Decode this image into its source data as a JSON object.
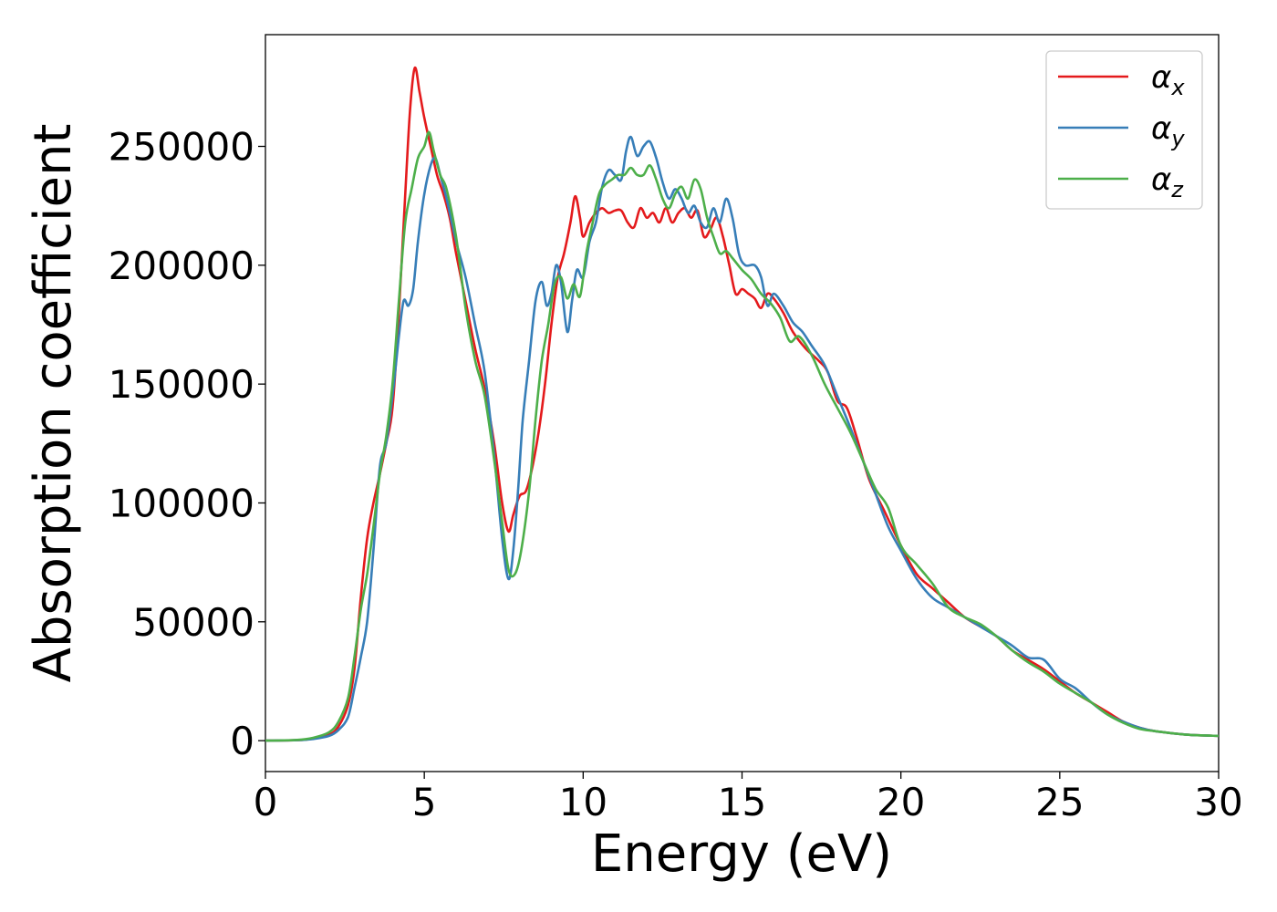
{
  "chart_data": {
    "type": "line",
    "xlabel": "Energy (eV)",
    "ylabel": "Absorption coefficient",
    "xlim": [
      0,
      30
    ],
    "ylim": [
      -13000,
      297000
    ],
    "xticks": [
      0,
      5,
      10,
      15,
      20,
      25,
      30
    ],
    "yticks": [
      0,
      50000,
      100000,
      150000,
      200000,
      250000
    ],
    "grid": false,
    "legend_position": "top-right",
    "series": [
      {
        "name": "α",
        "subscript": "x",
        "color": "#e41a1c",
        "points": [
          [
            0,
            0
          ],
          [
            1,
            200
          ],
          [
            1.5,
            800
          ],
          [
            2,
            2500
          ],
          [
            2.3,
            6000
          ],
          [
            2.6,
            15000
          ],
          [
            2.8,
            30000
          ],
          [
            3.0,
            60000
          ],
          [
            3.2,
            85000
          ],
          [
            3.4,
            100000
          ],
          [
            3.6,
            112000
          ],
          [
            3.8,
            125000
          ],
          [
            4.0,
            140000
          ],
          [
            4.2,
            180000
          ],
          [
            4.4,
            230000
          ],
          [
            4.55,
            265000
          ],
          [
            4.7,
            283000
          ],
          [
            4.85,
            273000
          ],
          [
            5.0,
            262000
          ],
          [
            5.2,
            250000
          ],
          [
            5.4,
            238000
          ],
          [
            5.6,
            230000
          ],
          [
            5.8,
            220000
          ],
          [
            6.0,
            205000
          ],
          [
            6.3,
            185000
          ],
          [
            6.6,
            165000
          ],
          [
            6.9,
            148000
          ],
          [
            7.2,
            125000
          ],
          [
            7.45,
            100000
          ],
          [
            7.65,
            88000
          ],
          [
            7.8,
            95000
          ],
          [
            8.0,
            103000
          ],
          [
            8.2,
            105000
          ],
          [
            8.4,
            115000
          ],
          [
            8.6,
            130000
          ],
          [
            8.8,
            150000
          ],
          [
            9.0,
            175000
          ],
          [
            9.2,
            195000
          ],
          [
            9.4,
            205000
          ],
          [
            9.6,
            218000
          ],
          [
            9.75,
            229000
          ],
          [
            9.9,
            220000
          ],
          [
            10.0,
            212000
          ],
          [
            10.2,
            218000
          ],
          [
            10.4,
            222000
          ],
          [
            10.6,
            224000
          ],
          [
            10.8,
            222000
          ],
          [
            11.0,
            223000
          ],
          [
            11.2,
            223000
          ],
          [
            11.4,
            218000
          ],
          [
            11.6,
            216000
          ],
          [
            11.8,
            224000
          ],
          [
            12.0,
            220000
          ],
          [
            12.2,
            222000
          ],
          [
            12.4,
            218000
          ],
          [
            12.6,
            224000
          ],
          [
            12.8,
            218000
          ],
          [
            13.0,
            222000
          ],
          [
            13.2,
            224000
          ],
          [
            13.4,
            220000
          ],
          [
            13.6,
            223000
          ],
          [
            13.8,
            212000
          ],
          [
            14.0,
            215000
          ],
          [
            14.2,
            220000
          ],
          [
            14.4,
            212000
          ],
          [
            14.6,
            200000
          ],
          [
            14.8,
            188000
          ],
          [
            15.0,
            190000
          ],
          [
            15.2,
            188000
          ],
          [
            15.4,
            186000
          ],
          [
            15.6,
            182000
          ],
          [
            15.8,
            188000
          ],
          [
            16.0,
            186000
          ],
          [
            16.3,
            180000
          ],
          [
            16.6,
            172000
          ],
          [
            17.0,
            165000
          ],
          [
            17.4,
            160000
          ],
          [
            17.7,
            155000
          ],
          [
            18.0,
            143000
          ],
          [
            18.3,
            140000
          ],
          [
            18.6,
            128000
          ],
          [
            19.0,
            110000
          ],
          [
            19.5,
            96000
          ],
          [
            20.0,
            82000
          ],
          [
            20.5,
            70000
          ],
          [
            21.0,
            64000
          ],
          [
            21.5,
            58000
          ],
          [
            22.0,
            52000
          ],
          [
            22.5,
            48000
          ],
          [
            23.0,
            44000
          ],
          [
            23.5,
            38000
          ],
          [
            24.0,
            34000
          ],
          [
            24.5,
            30000
          ],
          [
            25.0,
            25000
          ],
          [
            25.5,
            20000
          ],
          [
            26.0,
            16000
          ],
          [
            26.5,
            12000
          ],
          [
            27.0,
            8000
          ],
          [
            27.5,
            5500
          ],
          [
            28.0,
            4000
          ],
          [
            29.0,
            2500
          ],
          [
            30.0,
            2000
          ]
        ]
      },
      {
        "name": "α",
        "subscript": "y",
        "color": "#377eb8",
        "points": [
          [
            0,
            0
          ],
          [
            1,
            200
          ],
          [
            1.5,
            700
          ],
          [
            2,
            2000
          ],
          [
            2.3,
            4500
          ],
          [
            2.6,
            10000
          ],
          [
            2.8,
            22000
          ],
          [
            3.0,
            35000
          ],
          [
            3.2,
            50000
          ],
          [
            3.4,
            80000
          ],
          [
            3.6,
            115000
          ],
          [
            3.8,
            125000
          ],
          [
            4.0,
            145000
          ],
          [
            4.2,
            170000
          ],
          [
            4.35,
            185000
          ],
          [
            4.5,
            183000
          ],
          [
            4.65,
            190000
          ],
          [
            4.8,
            210000
          ],
          [
            5.0,
            230000
          ],
          [
            5.2,
            242000
          ],
          [
            5.35,
            245000
          ],
          [
            5.5,
            238000
          ],
          [
            5.7,
            228000
          ],
          [
            6.0,
            210000
          ],
          [
            6.3,
            195000
          ],
          [
            6.6,
            175000
          ],
          [
            6.9,
            155000
          ],
          [
            7.2,
            120000
          ],
          [
            7.45,
            85000
          ],
          [
            7.65,
            68000
          ],
          [
            7.8,
            80000
          ],
          [
            7.95,
            105000
          ],
          [
            8.1,
            135000
          ],
          [
            8.3,
            160000
          ],
          [
            8.5,
            185000
          ],
          [
            8.7,
            193000
          ],
          [
            8.85,
            183000
          ],
          [
            9.0,
            188000
          ],
          [
            9.15,
            200000
          ],
          [
            9.3,
            193000
          ],
          [
            9.5,
            172000
          ],
          [
            9.65,
            185000
          ],
          [
            9.8,
            198000
          ],
          [
            10.0,
            195000
          ],
          [
            10.2,
            210000
          ],
          [
            10.4,
            218000
          ],
          [
            10.6,
            233000
          ],
          [
            10.8,
            240000
          ],
          [
            11.0,
            238000
          ],
          [
            11.2,
            236000
          ],
          [
            11.35,
            248000
          ],
          [
            11.5,
            254000
          ],
          [
            11.7,
            246000
          ],
          [
            11.9,
            250000
          ],
          [
            12.1,
            252000
          ],
          [
            12.3,
            245000
          ],
          [
            12.5,
            235000
          ],
          [
            12.7,
            228000
          ],
          [
            12.9,
            232000
          ],
          [
            13.1,
            228000
          ],
          [
            13.3,
            222000
          ],
          [
            13.5,
            225000
          ],
          [
            13.7,
            218000
          ],
          [
            13.9,
            216000
          ],
          [
            14.1,
            224000
          ],
          [
            14.3,
            218000
          ],
          [
            14.5,
            228000
          ],
          [
            14.7,
            220000
          ],
          [
            14.9,
            205000
          ],
          [
            15.1,
            200000
          ],
          [
            15.4,
            200000
          ],
          [
            15.6,
            195000
          ],
          [
            15.8,
            183000
          ],
          [
            16.0,
            188000
          ],
          [
            16.3,
            183000
          ],
          [
            16.6,
            176000
          ],
          [
            16.9,
            172000
          ],
          [
            17.2,
            166000
          ],
          [
            17.6,
            158000
          ],
          [
            18.0,
            145000
          ],
          [
            18.4,
            132000
          ],
          [
            18.8,
            118000
          ],
          [
            19.2,
            104000
          ],
          [
            19.6,
            90000
          ],
          [
            20.0,
            80000
          ],
          [
            20.5,
            68000
          ],
          [
            21.0,
            60000
          ],
          [
            21.5,
            56000
          ],
          [
            22.0,
            52000
          ],
          [
            22.5,
            48000
          ],
          [
            23.0,
            44000
          ],
          [
            23.5,
            40000
          ],
          [
            24.0,
            35000
          ],
          [
            24.5,
            34000
          ],
          [
            25.0,
            26000
          ],
          [
            25.5,
            22000
          ],
          [
            26.0,
            16000
          ],
          [
            26.5,
            11000
          ],
          [
            27.0,
            8000
          ],
          [
            27.5,
            5500
          ],
          [
            28.0,
            4000
          ],
          [
            29.0,
            2500
          ],
          [
            30.0,
            2000
          ]
        ]
      },
      {
        "name": "α",
        "subscript": "z",
        "color": "#4daf4a",
        "points": [
          [
            0,
            0
          ],
          [
            1,
            300
          ],
          [
            1.5,
            1200
          ],
          [
            2,
            3500
          ],
          [
            2.3,
            8000
          ],
          [
            2.6,
            18000
          ],
          [
            2.8,
            35000
          ],
          [
            3.0,
            55000
          ],
          [
            3.2,
            70000
          ],
          [
            3.4,
            90000
          ],
          [
            3.6,
            112000
          ],
          [
            3.8,
            128000
          ],
          [
            4.0,
            150000
          ],
          [
            4.2,
            185000
          ],
          [
            4.4,
            218000
          ],
          [
            4.6,
            232000
          ],
          [
            4.8,
            245000
          ],
          [
            5.0,
            250000
          ],
          [
            5.15,
            256000
          ],
          [
            5.3,
            248000
          ],
          [
            5.5,
            238000
          ],
          [
            5.7,
            232000
          ],
          [
            6.0,
            212000
          ],
          [
            6.3,
            182000
          ],
          [
            6.6,
            160000
          ],
          [
            6.9,
            145000
          ],
          [
            7.2,
            118000
          ],
          [
            7.45,
            92000
          ],
          [
            7.65,
            72000
          ],
          [
            7.85,
            70000
          ],
          [
            8.05,
            80000
          ],
          [
            8.3,
            105000
          ],
          [
            8.5,
            135000
          ],
          [
            8.7,
            160000
          ],
          [
            8.9,
            175000
          ],
          [
            9.1,
            192000
          ],
          [
            9.3,
            195000
          ],
          [
            9.5,
            186000
          ],
          [
            9.7,
            192000
          ],
          [
            9.9,
            187000
          ],
          [
            10.1,
            205000
          ],
          [
            10.3,
            218000
          ],
          [
            10.5,
            230000
          ],
          [
            10.7,
            234000
          ],
          [
            10.9,
            236000
          ],
          [
            11.1,
            238000
          ],
          [
            11.3,
            238000
          ],
          [
            11.5,
            241000
          ],
          [
            11.7,
            238000
          ],
          [
            11.9,
            238000
          ],
          [
            12.1,
            242000
          ],
          [
            12.3,
            236000
          ],
          [
            12.5,
            228000
          ],
          [
            12.7,
            224000
          ],
          [
            12.9,
            230000
          ],
          [
            13.1,
            233000
          ],
          [
            13.3,
            228000
          ],
          [
            13.5,
            236000
          ],
          [
            13.7,
            232000
          ],
          [
            13.9,
            220000
          ],
          [
            14.1,
            212000
          ],
          [
            14.3,
            205000
          ],
          [
            14.5,
            206000
          ],
          [
            14.7,
            203000
          ],
          [
            15.0,
            198000
          ],
          [
            15.3,
            194000
          ],
          [
            15.6,
            188000
          ],
          [
            15.9,
            184000
          ],
          [
            16.2,
            178000
          ],
          [
            16.5,
            168000
          ],
          [
            16.8,
            170000
          ],
          [
            17.2,
            162000
          ],
          [
            17.6,
            150000
          ],
          [
            18.0,
            140000
          ],
          [
            18.4,
            130000
          ],
          [
            18.8,
            118000
          ],
          [
            19.2,
            106000
          ],
          [
            19.6,
            98000
          ],
          [
            20.0,
            82000
          ],
          [
            20.5,
            74000
          ],
          [
            21.0,
            66000
          ],
          [
            21.5,
            56000
          ],
          [
            22.0,
            52000
          ],
          [
            22.5,
            49000
          ],
          [
            23.0,
            44000
          ],
          [
            23.5,
            38000
          ],
          [
            24.0,
            33000
          ],
          [
            24.5,
            29000
          ],
          [
            25.0,
            24000
          ],
          [
            25.5,
            20000
          ],
          [
            26.0,
            16000
          ],
          [
            26.5,
            11000
          ],
          [
            27.0,
            7500
          ],
          [
            27.5,
            5000
          ],
          [
            28.0,
            4000
          ],
          [
            29.0,
            2500
          ],
          [
            30.0,
            2000
          ]
        ]
      }
    ]
  }
}
